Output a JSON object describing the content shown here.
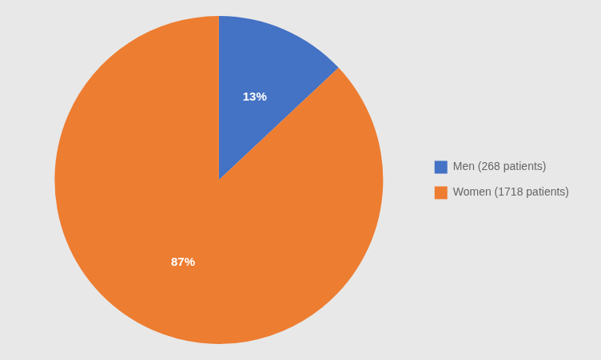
{
  "chart_data": {
    "type": "pie",
    "categories": [
      "Men (268 patients)",
      "Women (1718 patients)"
    ],
    "values": [
      13,
      87
    ],
    "value_labels": [
      "13%",
      "87%"
    ],
    "colors": [
      "#4472C4",
      "#ED7D31"
    ],
    "data_labels": true,
    "legend": "right"
  }
}
